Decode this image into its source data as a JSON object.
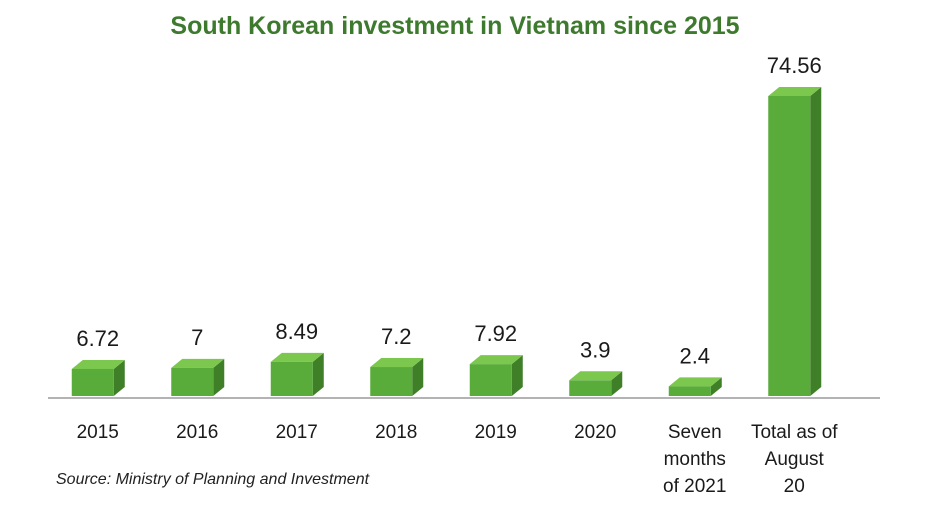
{
  "chart_data": {
    "type": "bar",
    "title": "South Korean investment in Vietnam since 2015",
    "categories": [
      "2015",
      "2016",
      "2017",
      "2018",
      "2019",
      "2020",
      "Seven months of 2021",
      "Total as of August 20"
    ],
    "values": [
      6.72,
      7,
      8.49,
      7.2,
      7.92,
      3.9,
      2.4,
      74.56
    ],
    "value_labels": [
      "6.72",
      "7",
      "8.49",
      "7.2",
      "7.92",
      "3.9",
      "2.4",
      "74.56"
    ],
    "xlabel": "",
    "ylabel": "",
    "ylim": [
      0,
      80
    ],
    "grid": false,
    "legend": "none",
    "source": "Source: Ministry of Planning and Investment",
    "colors": {
      "title": "#3d7a2e",
      "bar_front": "#5aac3a",
      "bar_top": "#7cc84f",
      "bar_side": "#3f7f28",
      "axis": "#9a9a9a"
    }
  }
}
